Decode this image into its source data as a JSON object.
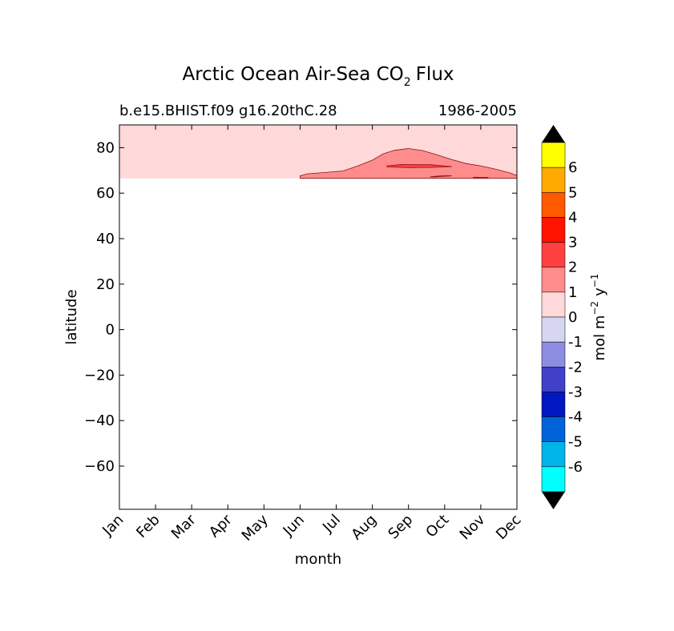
{
  "chart_data": {
    "type": "contour",
    "title_main": "Arctic Ocean Air-Sea CO",
    "title_sub": "2",
    "title_end": "Flux",
    "subtitle_left": "b.e15.BHIST.f09 g16.20thC.28",
    "subtitle_right": "1986-2005",
    "xlabel": "month",
    "ylabel": "latitude",
    "x_ticks": [
      "Jan",
      "Feb",
      "Mar",
      "Apr",
      "May",
      "Jun",
      "Jul",
      "Aug",
      "Sep",
      "Oct",
      "Nov",
      "Dec"
    ],
    "y_ticks": [
      80,
      60,
      40,
      20,
      0,
      -20,
      -40,
      -60
    ],
    "y_tick_labels": [
      "80",
      "60",
      "40",
      "20",
      "0",
      "−20",
      "−40",
      "−60"
    ],
    "ylim": [
      -79,
      90
    ],
    "data_lat_min": 66.5,
    "contours": [
      {
        "level": "1-2",
        "color": "#ff8c8c",
        "points": [
          [
            5.0,
            66.5
          ],
          [
            5.0,
            67.6
          ],
          [
            5.2,
            68.5
          ],
          [
            5.7,
            69.1
          ],
          [
            6.2,
            69.8
          ],
          [
            6.6,
            72.0
          ],
          [
            7.0,
            74.5
          ],
          [
            7.3,
            77.3
          ],
          [
            7.6,
            78.8
          ],
          [
            8.0,
            79.6
          ],
          [
            8.4,
            78.7
          ],
          [
            8.8,
            76.8
          ],
          [
            9.2,
            74.8
          ],
          [
            9.6,
            73.0
          ],
          [
            10.0,
            72.0
          ],
          [
            10.4,
            70.6
          ],
          [
            10.8,
            68.9
          ],
          [
            11.0,
            67.7
          ],
          [
            11.0,
            66.5
          ]
        ]
      },
      {
        "level": "2-3",
        "color": "#ff4040",
        "points": [
          [
            7.4,
            72.0
          ],
          [
            7.8,
            72.6
          ],
          [
            8.2,
            72.5
          ],
          [
            8.6,
            72.5
          ],
          [
            9.2,
            71.7
          ],
          [
            8.6,
            71.3
          ],
          [
            8.0,
            71.2
          ],
          [
            7.4,
            71.6
          ]
        ]
      },
      {
        "level": "low",
        "color": "#ffd9d9",
        "points": [
          [
            8.6,
            67.2
          ],
          [
            9.0,
            67.8
          ],
          [
            9.2,
            67.6
          ],
          [
            8.7,
            67.1
          ]
        ]
      },
      {
        "level": "2-3",
        "color": "#ff4040",
        "points": [
          [
            9.8,
            66.5
          ],
          [
            9.8,
            67.0
          ],
          [
            10.2,
            66.9
          ],
          [
            10.2,
            66.5
          ]
        ]
      }
    ],
    "background_color": "#ffd9d9",
    "colorbar": {
      "label": "mol m",
      "label_sup1": "−2",
      "label_mid": "y",
      "label_sup2": "−1",
      "tick_labels": [
        "6",
        "5",
        "4",
        "3",
        "2",
        "1",
        "0",
        "-1",
        "-2",
        "-3",
        "-4",
        "-5",
        "-6"
      ],
      "colors_top_to_bottom": [
        "#ffff00",
        "#ffaa00",
        "#ff5a00",
        "#ff1400",
        "#ff4040",
        "#ff8c8c",
        "#ffd9d9",
        "#d6d6f2",
        "#8c8ce0",
        "#4040c8",
        "#0018c0",
        "#0064d8",
        "#00b4ea",
        "#00ffff"
      ],
      "extend_color": "#000000"
    }
  }
}
